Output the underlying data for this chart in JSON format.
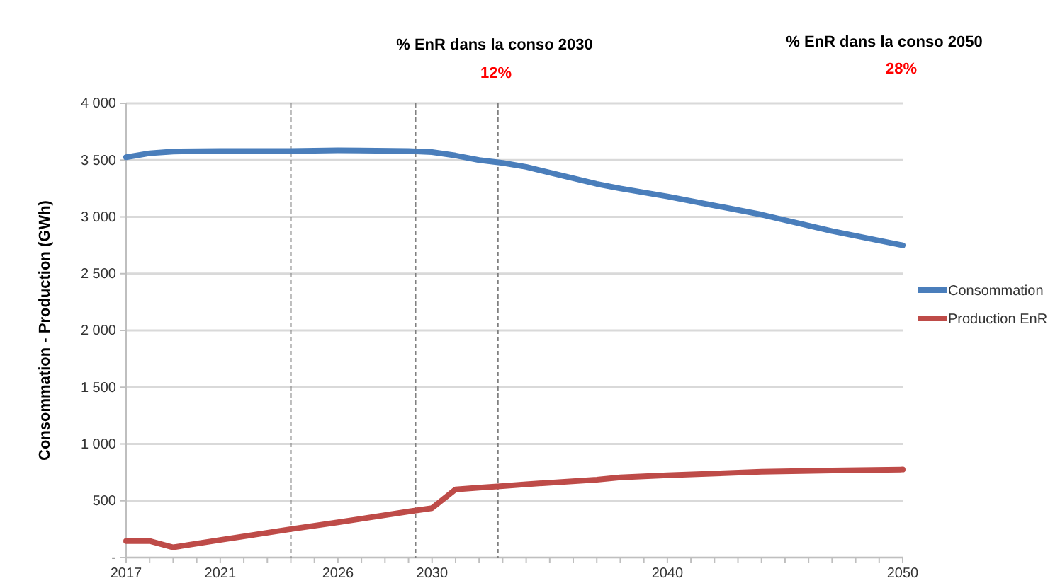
{
  "chart_data": {
    "type": "line",
    "ylabel": "Consommation - Production (GWh)",
    "x": [
      2017,
      2018,
      2019,
      2021,
      2024,
      2026,
      2029,
      2030,
      2031,
      2032,
      2033,
      2034,
      2037,
      2038,
      2040,
      2044,
      2047,
      2050
    ],
    "series": [
      {
        "name": "Consommation",
        "color": "#4a7ebb",
        "values": [
          3525,
          3560,
          3575,
          3580,
          3580,
          3585,
          3580,
          3570,
          3540,
          3500,
          3475,
          3440,
          3290,
          3250,
          3180,
          3020,
          2875,
          2750
        ]
      },
      {
        "name": "Production EnR",
        "color": "#be4b48",
        "values": [
          145,
          145,
          90,
          155,
          250,
          310,
          405,
          435,
          600,
          615,
          630,
          645,
          685,
          705,
          725,
          755,
          767,
          775
        ]
      }
    ],
    "xlim": [
      2017,
      2050
    ],
    "xticks": [
      2017,
      {
        "value": 2018,
        "label": null
      },
      {
        "value": 2019,
        "label": null
      },
      {
        "value": 2020,
        "label": null
      },
      2021,
      {
        "value": 2022,
        "label": null
      },
      {
        "value": 2023,
        "label": null
      },
      {
        "value": 2024,
        "label": null
      },
      {
        "value": 2025,
        "label": null
      },
      2026,
      {
        "value": 2027,
        "label": null
      },
      {
        "value": 2028,
        "label": null
      },
      {
        "value": 2029,
        "label": null
      },
      2030,
      {
        "value": 2031,
        "label": null
      },
      {
        "value": 2032,
        "label": null
      },
      {
        "value": 2033,
        "label": null
      },
      {
        "value": 2034,
        "label": null
      },
      {
        "value": 2035,
        "label": null
      },
      {
        "value": 2036,
        "label": null
      },
      {
        "value": 2037,
        "label": null
      },
      {
        "value": 2038,
        "label": null
      },
      {
        "value": 2039,
        "label": null
      },
      2040,
      {
        "value": 2041,
        "label": null
      },
      {
        "value": 2042,
        "label": null
      },
      {
        "value": 2043,
        "label": null
      },
      {
        "value": 2044,
        "label": null
      },
      {
        "value": 2045,
        "label": null
      },
      {
        "value": 2046,
        "label": null
      },
      {
        "value": 2047,
        "label": null
      },
      {
        "value": 2048,
        "label": null
      },
      {
        "value": 2049,
        "label": null
      },
      2050
    ],
    "ylim": [
      0,
      4000
    ],
    "yticks": [
      {
        "value": 0,
        "label": "-"
      },
      500,
      {
        "value": 1000,
        "label": "1 000"
      },
      {
        "value": 1500,
        "label": "1 500"
      },
      {
        "value": 2000,
        "label": "2 000"
      },
      {
        "value": 2500,
        "label": "2 500"
      },
      {
        "value": 3000,
        "label": "3 000"
      },
      {
        "value": 3500,
        "label": "3 500"
      },
      {
        "value": 4000,
        "label": "4 000"
      }
    ],
    "grid": "y",
    "legend": "right",
    "line_style": "solid",
    "marker": "none",
    "ref_lines": [
      {
        "axis": "x",
        "value": 2024,
        "color": "#808080",
        "line_style": "dashed"
      },
      {
        "axis": "x",
        "value": 2029.3,
        "color": "#808080",
        "line_style": "dashed"
      },
      {
        "axis": "x",
        "value": 2032.8,
        "color": "#808080",
        "line_style": "dashed"
      }
    ],
    "annotations": [
      "% EnR dans la conso 2030",
      "12%",
      "% EnR dans la conso 2050",
      "28%"
    ]
  }
}
